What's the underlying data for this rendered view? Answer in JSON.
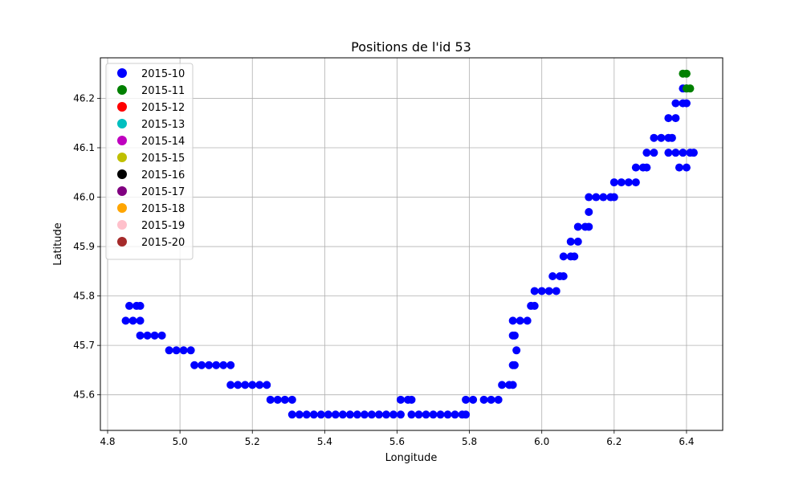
{
  "chart_data": {
    "type": "scatter",
    "title": "Positions de l'id 53",
    "xlabel": "Longitude",
    "ylabel": "Latitude",
    "xlim": [
      4.78,
      6.5
    ],
    "ylim": [
      45.528,
      46.282
    ],
    "xticks": [
      4.8,
      5.0,
      5.2,
      5.4,
      5.6,
      5.8,
      6.0,
      6.2,
      6.4
    ],
    "xtick_labels": [
      "4.8",
      "5.0",
      "5.2",
      "5.4",
      "5.6",
      "5.8",
      "6.0",
      "6.2",
      "6.4"
    ],
    "yticks": [
      45.6,
      45.7,
      45.8,
      45.9,
      46.0,
      46.1,
      46.2
    ],
    "ytick_labels": [
      "45.6",
      "45.7",
      "45.8",
      "45.9",
      "46.0",
      "46.1",
      "46.2"
    ],
    "grid": true,
    "legend_position": "top-left",
    "legend": [
      {
        "label": "2015-10",
        "color": "#0000ff"
      },
      {
        "label": "2015-11",
        "color": "#008000"
      },
      {
        "label": "2015-12",
        "color": "#ff0000"
      },
      {
        "label": "2015-13",
        "color": "#00bfbf"
      },
      {
        "label": "2015-14",
        "color": "#bf00bf"
      },
      {
        "label": "2015-15",
        "color": "#bfbf00"
      },
      {
        "label": "2015-16",
        "color": "#000000"
      },
      {
        "label": "2015-17",
        "color": "#800080"
      },
      {
        "label": "2015-18",
        "color": "#ffa500"
      },
      {
        "label": "2015-19",
        "color": "#ffc0cb"
      },
      {
        "label": "2015-20",
        "color": "#a52a2a"
      }
    ],
    "series": [
      {
        "name": "2015-10",
        "color": "#0000ff",
        "points": [
          [
            4.85,
            45.75
          ],
          [
            4.87,
            45.75
          ],
          [
            4.89,
            45.75
          ],
          [
            4.86,
            45.78
          ],
          [
            4.88,
            45.78
          ],
          [
            4.89,
            45.78
          ],
          [
            4.89,
            45.72
          ],
          [
            4.91,
            45.72
          ],
          [
            4.93,
            45.72
          ],
          [
            4.95,
            45.72
          ],
          [
            4.97,
            45.69
          ],
          [
            4.99,
            45.69
          ],
          [
            5.01,
            45.69
          ],
          [
            5.03,
            45.69
          ],
          [
            5.04,
            45.66
          ],
          [
            5.06,
            45.66
          ],
          [
            5.08,
            45.66
          ],
          [
            5.1,
            45.66
          ],
          [
            5.12,
            45.66
          ],
          [
            5.14,
            45.66
          ],
          [
            5.14,
            45.62
          ],
          [
            5.16,
            45.62
          ],
          [
            5.18,
            45.62
          ],
          [
            5.2,
            45.62
          ],
          [
            5.22,
            45.62
          ],
          [
            5.24,
            45.62
          ],
          [
            5.25,
            45.59
          ],
          [
            5.27,
            45.59
          ],
          [
            5.29,
            45.59
          ],
          [
            5.31,
            45.59
          ],
          [
            5.31,
            45.56
          ],
          [
            5.33,
            45.56
          ],
          [
            5.35,
            45.56
          ],
          [
            5.37,
            45.56
          ],
          [
            5.39,
            45.56
          ],
          [
            5.41,
            45.56
          ],
          [
            5.43,
            45.56
          ],
          [
            5.45,
            45.56
          ],
          [
            5.47,
            45.56
          ],
          [
            5.49,
            45.56
          ],
          [
            5.51,
            45.56
          ],
          [
            5.53,
            45.56
          ],
          [
            5.55,
            45.56
          ],
          [
            5.57,
            45.56
          ],
          [
            5.59,
            45.56
          ],
          [
            5.61,
            45.56
          ],
          [
            5.61,
            45.59
          ],
          [
            5.63,
            45.59
          ],
          [
            5.64,
            45.59
          ],
          [
            5.64,
            45.56
          ],
          [
            5.66,
            45.56
          ],
          [
            5.68,
            45.56
          ],
          [
            5.7,
            45.56
          ],
          [
            5.72,
            45.56
          ],
          [
            5.74,
            45.56
          ],
          [
            5.76,
            45.56
          ],
          [
            5.78,
            45.56
          ],
          [
            5.79,
            45.56
          ],
          [
            5.79,
            45.59
          ],
          [
            5.81,
            45.59
          ],
          [
            5.84,
            45.59
          ],
          [
            5.86,
            45.59
          ],
          [
            5.88,
            45.59
          ],
          [
            5.89,
            45.62
          ],
          [
            5.91,
            45.62
          ],
          [
            5.92,
            45.62
          ],
          [
            5.92,
            45.66
          ],
          [
            5.925,
            45.66
          ],
          [
            5.92,
            45.72
          ],
          [
            5.925,
            45.72
          ],
          [
            5.93,
            45.69
          ],
          [
            5.92,
            45.75
          ],
          [
            5.94,
            45.75
          ],
          [
            5.96,
            45.75
          ],
          [
            5.97,
            45.78
          ],
          [
            5.98,
            45.78
          ],
          [
            5.98,
            45.81
          ],
          [
            6.0,
            45.81
          ],
          [
            6.02,
            45.81
          ],
          [
            6.04,
            45.81
          ],
          [
            6.03,
            45.84
          ],
          [
            6.05,
            45.84
          ],
          [
            6.06,
            45.84
          ],
          [
            6.06,
            45.88
          ],
          [
            6.08,
            45.88
          ],
          [
            6.09,
            45.88
          ],
          [
            6.08,
            45.91
          ],
          [
            6.1,
            45.91
          ],
          [
            6.1,
            45.94
          ],
          [
            6.12,
            45.94
          ],
          [
            6.13,
            45.94
          ],
          [
            6.13,
            45.97
          ],
          [
            6.13,
            46.0
          ],
          [
            6.15,
            46.0
          ],
          [
            6.17,
            46.0
          ],
          [
            6.19,
            46.0
          ],
          [
            6.2,
            46.0
          ],
          [
            6.2,
            46.03
          ],
          [
            6.22,
            46.03
          ],
          [
            6.24,
            46.03
          ],
          [
            6.26,
            46.03
          ],
          [
            6.26,
            46.06
          ],
          [
            6.28,
            46.06
          ],
          [
            6.29,
            46.06
          ],
          [
            6.29,
            46.09
          ],
          [
            6.31,
            46.09
          ],
          [
            6.31,
            46.12
          ],
          [
            6.33,
            46.12
          ],
          [
            6.35,
            46.12
          ],
          [
            6.36,
            46.12
          ],
          [
            6.35,
            46.09
          ],
          [
            6.37,
            46.09
          ],
          [
            6.39,
            46.09
          ],
          [
            6.41,
            46.09
          ],
          [
            6.42,
            46.09
          ],
          [
            6.38,
            46.06
          ],
          [
            6.4,
            46.06
          ],
          [
            6.35,
            46.16
          ],
          [
            6.37,
            46.16
          ],
          [
            6.37,
            46.19
          ],
          [
            6.39,
            46.19
          ],
          [
            6.4,
            46.19
          ],
          [
            6.39,
            46.22
          ],
          [
            6.4,
            46.22
          ]
        ]
      },
      {
        "name": "2015-11",
        "color": "#008000",
        "points": [
          [
            6.39,
            46.25
          ],
          [
            6.4,
            46.25
          ],
          [
            6.4,
            46.22
          ],
          [
            6.41,
            46.22
          ]
        ]
      }
    ]
  }
}
